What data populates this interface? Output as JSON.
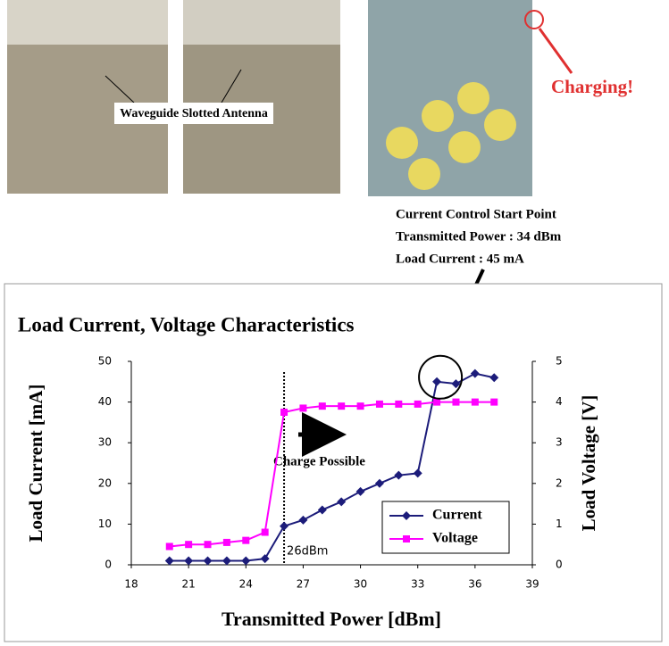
{
  "photos": {
    "antenna_label": "Waveguide Slotted Antenna",
    "charging_label": "Charging!"
  },
  "annotation": {
    "lines": [
      "Current Control Start Point",
      "Transmitted Power : 34 dBm",
      "Load Current : 45 mA"
    ]
  },
  "chart_data": {
    "type": "line",
    "title": "Load Current, Voltage Characteristics",
    "x_label": "Transmitted Power [dBm]",
    "y_label": "Load Current [mA]",
    "y2_label": "Load Voltage [V]",
    "x": [
      20,
      21,
      22,
      23,
      24,
      25,
      26,
      27,
      28,
      29,
      30,
      31,
      32,
      33,
      34,
      35,
      36,
      37
    ],
    "series": [
      {
        "name": "Current",
        "color": "#1c1c7a",
        "marker": "diamond",
        "values": [
          1,
          1,
          1,
          1,
          1,
          1.5,
          9.5,
          11,
          13.5,
          15.5,
          18,
          20,
          22,
          22.5,
          45,
          44.5,
          47,
          46
        ]
      },
      {
        "name": "Voltage",
        "color": "#ff00ff",
        "marker": "square",
        "axis": "y2",
        "values": [
          0.45,
          0.5,
          0.5,
          0.55,
          0.6,
          0.8,
          3.75,
          3.85,
          3.9,
          3.9,
          3.9,
          3.95,
          3.95,
          3.95,
          4,
          4,
          4,
          4
        ]
      }
    ],
    "xlim": [
      18,
      39
    ],
    "xticks": [
      18,
      21,
      24,
      27,
      30,
      33,
      36,
      39
    ],
    "ylim": [
      0,
      50
    ],
    "yticks": [
      0,
      10,
      20,
      30,
      40,
      50
    ],
    "y2lim": [
      0,
      5
    ],
    "y2ticks": [
      0,
      1,
      2,
      3,
      4,
      5
    ],
    "vline": {
      "x": 26,
      "label": "26dBm"
    },
    "region_label": "Charge Possible",
    "highlight": {
      "x": 34,
      "y": 45
    },
    "legend": "lower-right"
  }
}
